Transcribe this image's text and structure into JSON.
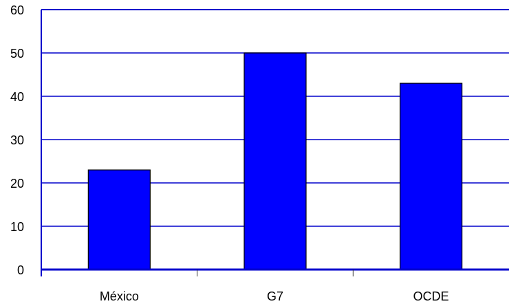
{
  "chart_data": {
    "type": "bar",
    "categories": [
      "México",
      "G7",
      "OCDE"
    ],
    "values": [
      23,
      50,
      43
    ],
    "ylim": [
      0,
      60
    ],
    "yticks": [
      0,
      10,
      20,
      30,
      40,
      50,
      60
    ],
    "grid": true,
    "title": "",
    "xlabel": "",
    "ylabel": "",
    "colors": {
      "bar": "#0000ff",
      "bar_stroke": "#000000",
      "grid": "#0000cc",
      "axis": "#0000cc",
      "tick": "#333333"
    }
  }
}
